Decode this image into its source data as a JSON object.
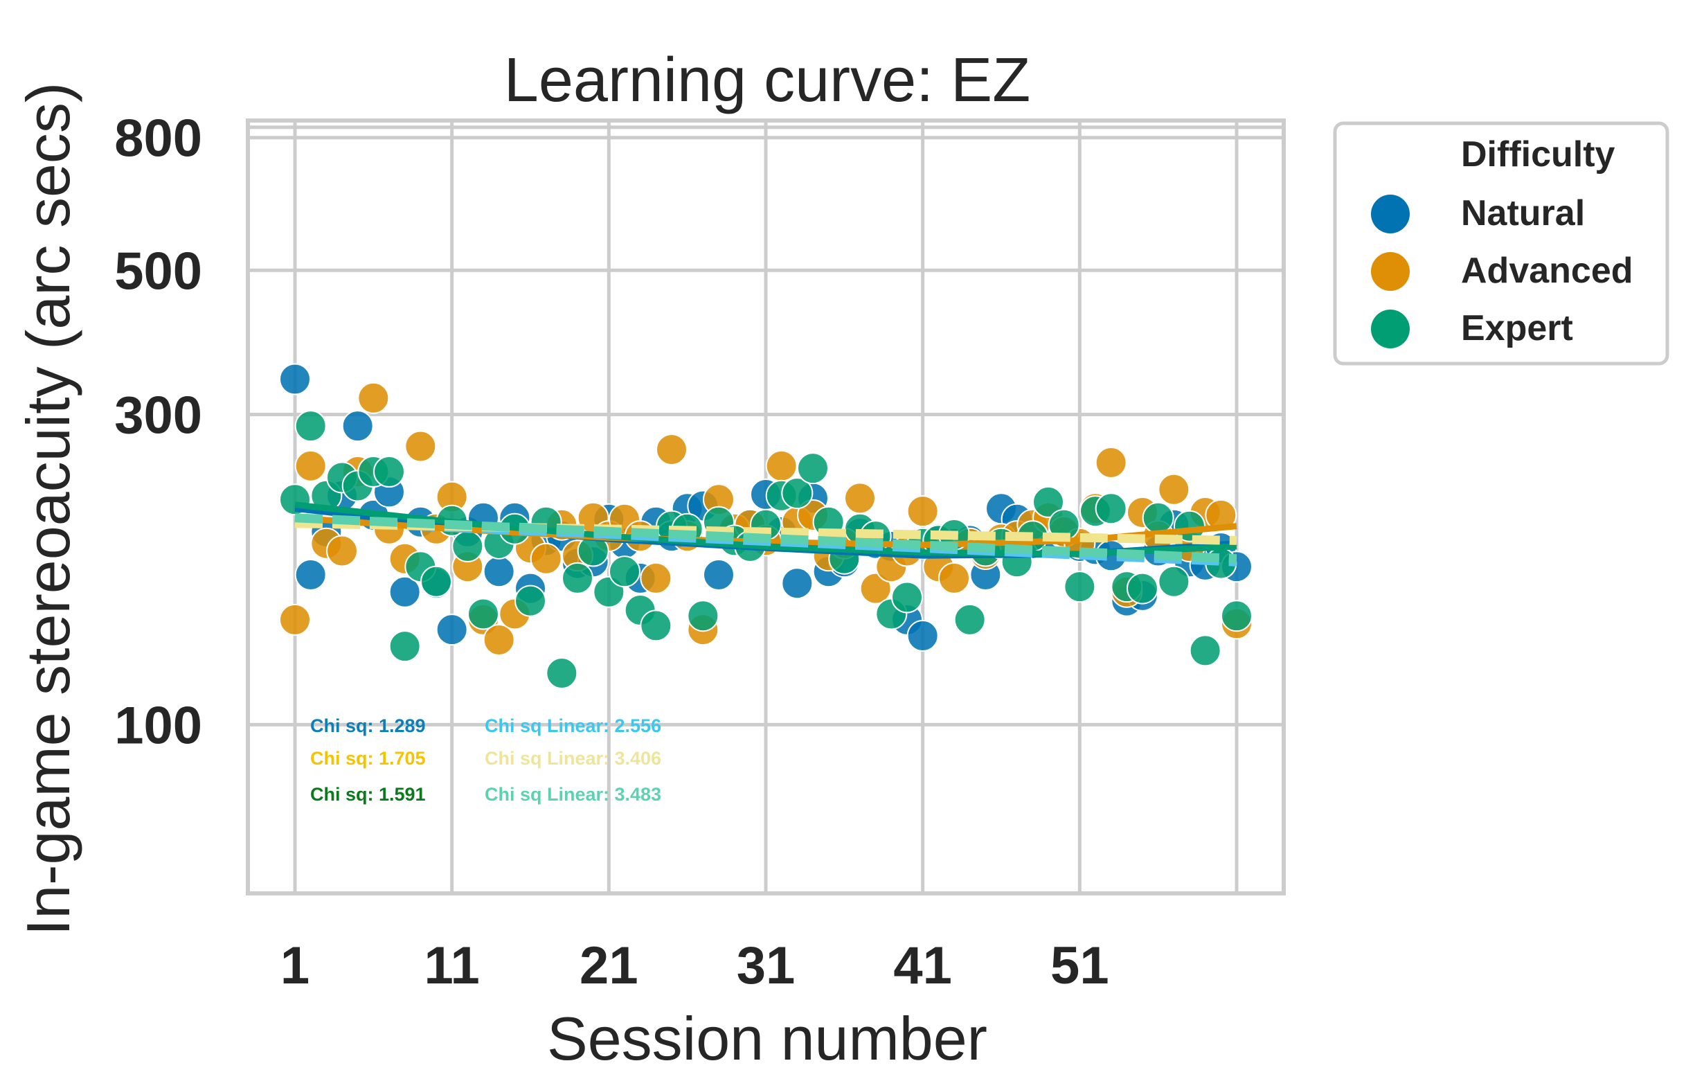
{
  "chart_data": {
    "type": "scatter",
    "title": "Learning curve: EZ",
    "xlabel": "Session number",
    "ylabel": "In-game stereoacuity (arc secs)",
    "y_scale": "log",
    "xlim": [
      -2,
      64
    ],
    "ylim": [
      55,
      850
    ],
    "x_ticks": [
      1,
      11,
      21,
      31,
      41,
      51
    ],
    "x_ticks_labels": [
      "1",
      "11",
      "21",
      "31",
      "41",
      "51"
    ],
    "x_extra_gridline": 61,
    "y_ticks": [
      100,
      300,
      500,
      800
    ],
    "y_ticks_labels": [
      "100",
      "300",
      "500",
      "800"
    ],
    "y_extra_gridline": 830,
    "grid": true,
    "legend": {
      "title": "Difficulty",
      "placement": "outside-top-right",
      "entries": [
        {
          "label": "Natural",
          "color": "#0173b2"
        },
        {
          "label": "Advanced",
          "color": "#de8f05"
        },
        {
          "label": "Expert",
          "color": "#029e73"
        }
      ]
    },
    "series": [
      {
        "name": "Natural",
        "color": "#0173b2",
        "points": [
          [
            1,
            340
          ],
          [
            2,
            170
          ],
          [
            3,
            198
          ],
          [
            4,
            225
          ],
          [
            5,
            288
          ],
          [
            6,
            210
          ],
          [
            7,
            228
          ],
          [
            8,
            160
          ],
          [
            9,
            205
          ],
          [
            10,
            165
          ],
          [
            11,
            140
          ],
          [
            12,
            198
          ],
          [
            13,
            208
          ],
          [
            14,
            172
          ],
          [
            15,
            208
          ],
          [
            16,
            162
          ],
          [
            17,
            192
          ],
          [
            18,
            195
          ],
          [
            19,
            177
          ],
          [
            20,
            178
          ],
          [
            21,
            207
          ],
          [
            22,
            190
          ],
          [
            23,
            168
          ],
          [
            24,
            205
          ],
          [
            25,
            195
          ],
          [
            26,
            215
          ],
          [
            27,
            217
          ],
          [
            28,
            170
          ],
          [
            29,
            198
          ],
          [
            30,
            203
          ],
          [
            31,
            226
          ],
          [
            32,
            198
          ],
          [
            33,
            165
          ],
          [
            34,
            223
          ],
          [
            35,
            172
          ],
          [
            36,
            178
          ],
          [
            37,
            197
          ],
          [
            38,
            190
          ],
          [
            39,
            188
          ],
          [
            40,
            145
          ],
          [
            41,
            137
          ],
          [
            42,
            193
          ],
          [
            43,
            190
          ],
          [
            44,
            192
          ],
          [
            45,
            170
          ],
          [
            46,
            215
          ],
          [
            47,
            207
          ],
          [
            48,
            190
          ],
          [
            49,
            193
          ],
          [
            50,
            197
          ],
          [
            51,
            188
          ],
          [
            52,
            186
          ],
          [
            53,
            182
          ],
          [
            54,
            155
          ],
          [
            55,
            158
          ],
          [
            56,
            185
          ],
          [
            57,
            203
          ],
          [
            58,
            178
          ],
          [
            59,
            176
          ],
          [
            60,
            187
          ],
          [
            61,
            175
          ]
        ]
      },
      {
        "name": "Advanced",
        "color": "#de8f05",
        "points": [
          [
            1,
            145
          ],
          [
            2,
            250
          ],
          [
            3,
            190
          ],
          [
            4,
            185
          ],
          [
            5,
            245
          ],
          [
            6,
            318
          ],
          [
            7,
            200
          ],
          [
            8,
            180
          ],
          [
            9,
            268
          ],
          [
            10,
            200
          ],
          [
            11,
            224
          ],
          [
            12,
            175
          ],
          [
            13,
            145
          ],
          [
            14,
            135
          ],
          [
            15,
            148
          ],
          [
            16,
            187
          ],
          [
            17,
            180
          ],
          [
            18,
            203
          ],
          [
            19,
            182
          ],
          [
            20,
            208
          ],
          [
            21,
            195
          ],
          [
            22,
            207
          ],
          [
            23,
            195
          ],
          [
            24,
            168
          ],
          [
            25,
            265
          ],
          [
            26,
            195
          ],
          [
            27,
            140
          ],
          [
            28,
            222
          ],
          [
            29,
            200
          ],
          [
            30,
            203
          ],
          [
            31,
            192
          ],
          [
            32,
            250
          ],
          [
            33,
            205
          ],
          [
            34,
            210
          ],
          [
            35,
            182
          ],
          [
            36,
            190
          ],
          [
            37,
            223
          ],
          [
            38,
            162
          ],
          [
            39,
            175
          ],
          [
            40,
            185
          ],
          [
            41,
            213
          ],
          [
            42,
            175
          ],
          [
            43,
            168
          ],
          [
            44,
            190
          ],
          [
            45,
            183
          ],
          [
            46,
            193
          ],
          [
            47,
            195
          ],
          [
            48,
            203
          ],
          [
            49,
            208
          ],
          [
            50,
            198
          ],
          [
            51,
            190
          ],
          [
            52,
            215
          ],
          [
            53,
            253
          ],
          [
            54,
            160
          ],
          [
            55,
            212
          ],
          [
            56,
            195
          ],
          [
            57,
            230
          ],
          [
            58,
            188
          ],
          [
            59,
            212
          ],
          [
            60,
            210
          ],
          [
            61,
            143
          ]
        ]
      },
      {
        "name": "Expert",
        "color": "#029e73",
        "points": [
          [
            1,
            222
          ],
          [
            2,
            288
          ],
          [
            3,
            225
          ],
          [
            4,
            240
          ],
          [
            5,
            233
          ],
          [
            6,
            245
          ],
          [
            7,
            245
          ],
          [
            8,
            132
          ],
          [
            9,
            175
          ],
          [
            10,
            166
          ],
          [
            11,
            206
          ],
          [
            12,
            188
          ],
          [
            13,
            148
          ],
          [
            14,
            190
          ],
          [
            15,
            200
          ],
          [
            16,
            155
          ],
          [
            17,
            205
          ],
          [
            18,
            120
          ],
          [
            19,
            168
          ],
          [
            20,
            185
          ],
          [
            21,
            160
          ],
          [
            22,
            172
          ],
          [
            23,
            150
          ],
          [
            24,
            142
          ],
          [
            25,
            202
          ],
          [
            26,
            200
          ],
          [
            27,
            147
          ],
          [
            28,
            205
          ],
          [
            29,
            192
          ],
          [
            30,
            188
          ],
          [
            31,
            203
          ],
          [
            32,
            225
          ],
          [
            33,
            227
          ],
          [
            34,
            248
          ],
          [
            35,
            205
          ],
          [
            36,
            180
          ],
          [
            37,
            200
          ],
          [
            38,
            195
          ],
          [
            39,
            148
          ],
          [
            40,
            157
          ],
          [
            41,
            190
          ],
          [
            42,
            192
          ],
          [
            43,
            196
          ],
          [
            44,
            145
          ],
          [
            45,
            185
          ],
          [
            46,
            190
          ],
          [
            47,
            178
          ],
          [
            48,
            195
          ],
          [
            49,
            220
          ],
          [
            50,
            203
          ],
          [
            51,
            163
          ],
          [
            52,
            213
          ],
          [
            53,
            215
          ],
          [
            54,
            163
          ],
          [
            55,
            162
          ],
          [
            56,
            208
          ],
          [
            57,
            166
          ],
          [
            58,
            202
          ],
          [
            59,
            130
          ],
          [
            60,
            177
          ],
          [
            61,
            147
          ]
        ]
      }
    ],
    "fits": [
      {
        "name": "Natural",
        "kind": "curve",
        "color": "#0173b2",
        "style": "solid",
        "points": [
          [
            1,
            215
          ],
          [
            11,
            202
          ],
          [
            21,
            193
          ],
          [
            31,
            187
          ],
          [
            41,
            182
          ],
          [
            51,
            183
          ],
          [
            61,
            190
          ]
        ]
      },
      {
        "name": "Advanced",
        "kind": "curve",
        "color": "#de8f05",
        "style": "solid",
        "points": [
          [
            1,
            208
          ],
          [
            11,
            200
          ],
          [
            21,
            194
          ],
          [
            31,
            191
          ],
          [
            41,
            189
          ],
          [
            51,
            192
          ],
          [
            61,
            202
          ]
        ]
      },
      {
        "name": "Expert",
        "kind": "curve",
        "color": "#029e73",
        "style": "solid",
        "points": [
          [
            1,
            218
          ],
          [
            11,
            205
          ],
          [
            21,
            195
          ],
          [
            31,
            188
          ],
          [
            41,
            184
          ],
          [
            51,
            183
          ],
          [
            61,
            188
          ]
        ]
      },
      {
        "name": "Natural",
        "kind": "linear",
        "color": "#56c3f0",
        "style": "dashed",
        "points": [
          [
            1,
            206
          ],
          [
            61,
            178
          ]
        ]
      },
      {
        "name": "Advanced",
        "kind": "linear",
        "color": "#f0e48c",
        "style": "dashed",
        "points": [
          [
            1,
            204
          ],
          [
            61,
            192
          ]
        ]
      },
      {
        "name": "Expert",
        "kind": "linear",
        "color": "#5ccfad",
        "style": "dashed",
        "points": [
          [
            1,
            208
          ],
          [
            61,
            180
          ]
        ]
      }
    ],
    "annotations": [
      {
        "text": "Chi sq: 1.289",
        "color": "#0a7fb8"
      },
      {
        "text": "Chi sq Linear: 2.556",
        "color": "#3cc8ee"
      },
      {
        "text": "Chi sq: 1.705",
        "color": "#f5c400"
      },
      {
        "text": "Chi sq Linear: 3.406",
        "color": "#eee59a"
      },
      {
        "text": "Chi sq: 1.591",
        "color": "#0a7a1c"
      },
      {
        "text": "Chi sq Linear: 3.483",
        "color": "#5cd2b2"
      }
    ]
  }
}
